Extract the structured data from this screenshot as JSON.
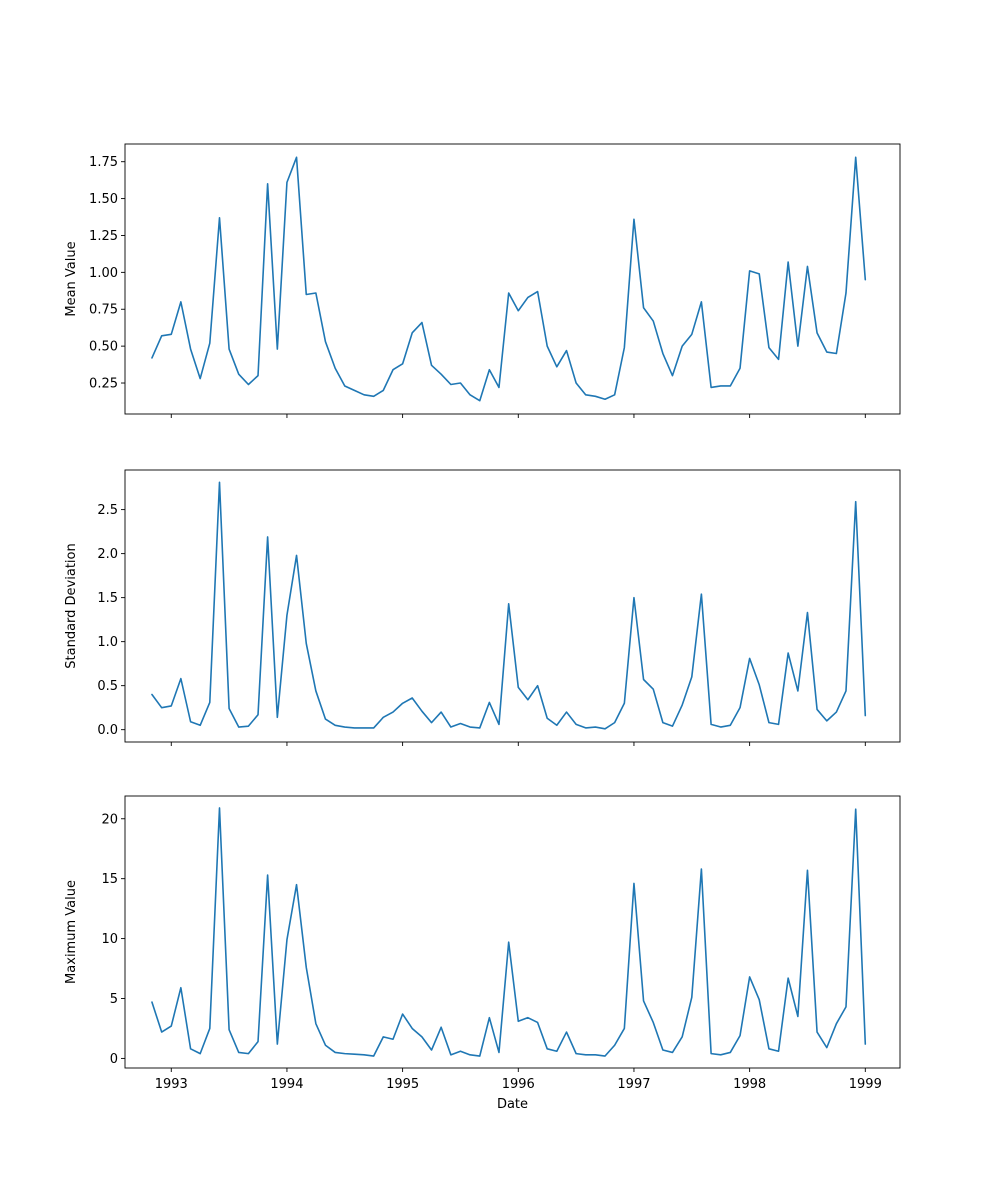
{
  "colors": {
    "series": "#1f77b4",
    "axes": "#000000",
    "background": "#ffffff"
  },
  "chart_data": [
    {
      "type": "line",
      "xlabel": "",
      "ylabel": "Mean Value",
      "xlim": [
        1992.6,
        1999.3
      ],
      "ylim": [
        0.04,
        1.87
      ],
      "yticks": [
        0.25,
        0.5,
        0.75,
        1.0,
        1.25,
        1.5,
        1.75
      ],
      "ytick_labels": [
        "0.25",
        "0.50",
        "0.75",
        "1.00",
        "1.25",
        "1.50",
        "1.75"
      ],
      "xticks": [
        1993,
        1994,
        1995,
        1996,
        1997,
        1998,
        1999
      ],
      "xtick_labels": [],
      "grid": false,
      "x": [
        1992.833,
        1992.917,
        1993.0,
        1993.083,
        1993.167,
        1993.25,
        1993.333,
        1993.417,
        1993.5,
        1993.583,
        1993.667,
        1993.75,
        1993.833,
        1993.917,
        1994.0,
        1994.083,
        1994.167,
        1994.25,
        1994.333,
        1994.417,
        1994.5,
        1994.583,
        1994.667,
        1994.75,
        1994.833,
        1994.917,
        1995.0,
        1995.083,
        1995.167,
        1995.25,
        1995.333,
        1995.417,
        1995.5,
        1995.583,
        1995.667,
        1995.75,
        1995.833,
        1995.917,
        1996.0,
        1996.083,
        1996.167,
        1996.25,
        1996.333,
        1996.417,
        1996.5,
        1996.583,
        1996.667,
        1996.75,
        1996.833,
        1996.917,
        1997.0,
        1997.083,
        1997.167,
        1997.25,
        1997.333,
        1997.417,
        1997.5,
        1997.583,
        1997.667,
        1997.75,
        1997.833,
        1997.917,
        1998.0,
        1998.083,
        1998.167,
        1998.25,
        1998.333,
        1998.417,
        1998.5,
        1998.583,
        1998.667,
        1998.75,
        1998.833,
        1998.917,
        1999.0
      ],
      "series": [
        {
          "values": [
            0.42,
            0.57,
            0.58,
            0.8,
            0.48,
            0.28,
            0.52,
            1.37,
            0.48,
            0.31,
            0.24,
            0.3,
            1.6,
            0.48,
            1.61,
            1.78,
            0.85,
            0.86,
            0.53,
            0.35,
            0.23,
            0.2,
            0.17,
            0.16,
            0.2,
            0.34,
            0.38,
            0.59,
            0.66,
            0.37,
            0.31,
            0.24,
            0.25,
            0.17,
            0.13,
            0.34,
            0.22,
            0.86,
            0.74,
            0.83,
            0.87,
            0.5,
            0.36,
            0.47,
            0.25,
            0.17,
            0.16,
            0.14,
            0.17,
            0.49,
            1.36,
            0.76,
            0.67,
            0.45,
            0.3,
            0.5,
            0.58,
            0.8,
            0.22,
            0.23,
            0.23,
            0.35,
            1.01,
            0.99,
            0.49,
            0.41,
            1.07,
            0.5,
            1.04,
            0.59,
            0.46,
            0.45,
            0.86,
            1.78,
            0.95
          ]
        }
      ]
    },
    {
      "type": "line",
      "xlabel": "",
      "ylabel": "Standard Deviation",
      "xlim": [
        1992.6,
        1999.3
      ],
      "ylim": [
        -0.14,
        2.95
      ],
      "yticks": [
        0.0,
        0.5,
        1.0,
        1.5,
        2.0,
        2.5
      ],
      "ytick_labels": [
        "0.0",
        "0.5",
        "1.0",
        "1.5",
        "2.0",
        "2.5"
      ],
      "xticks": [
        1993,
        1994,
        1995,
        1996,
        1997,
        1998,
        1999
      ],
      "xtick_labels": [],
      "grid": false,
      "x": [
        1992.833,
        1992.917,
        1993.0,
        1993.083,
        1993.167,
        1993.25,
        1993.333,
        1993.417,
        1993.5,
        1993.583,
        1993.667,
        1993.75,
        1993.833,
        1993.917,
        1994.0,
        1994.083,
        1994.167,
        1994.25,
        1994.333,
        1994.417,
        1994.5,
        1994.583,
        1994.667,
        1994.75,
        1994.833,
        1994.917,
        1995.0,
        1995.083,
        1995.167,
        1995.25,
        1995.333,
        1995.417,
        1995.5,
        1995.583,
        1995.667,
        1995.75,
        1995.833,
        1995.917,
        1996.0,
        1996.083,
        1996.167,
        1996.25,
        1996.333,
        1996.417,
        1996.5,
        1996.583,
        1996.667,
        1996.75,
        1996.833,
        1996.917,
        1997.0,
        1997.083,
        1997.167,
        1997.25,
        1997.333,
        1997.417,
        1997.5,
        1997.583,
        1997.667,
        1997.75,
        1997.833,
        1997.917,
        1998.0,
        1998.083,
        1998.167,
        1998.25,
        1998.333,
        1998.417,
        1998.5,
        1998.583,
        1998.667,
        1998.75,
        1998.833,
        1998.917,
        1999.0
      ],
      "series": [
        {
          "values": [
            0.4,
            0.25,
            0.27,
            0.58,
            0.09,
            0.05,
            0.31,
            2.81,
            0.24,
            0.03,
            0.04,
            0.17,
            2.19,
            0.14,
            1.3,
            1.98,
            0.98,
            0.44,
            0.12,
            0.05,
            0.03,
            0.02,
            0.02,
            0.02,
            0.14,
            0.2,
            0.3,
            0.36,
            0.21,
            0.08,
            0.2,
            0.03,
            0.07,
            0.03,
            0.02,
            0.31,
            0.06,
            1.43,
            0.48,
            0.34,
            0.5,
            0.13,
            0.05,
            0.2,
            0.06,
            0.02,
            0.03,
            0.01,
            0.08,
            0.3,
            1.5,
            0.57,
            0.46,
            0.08,
            0.04,
            0.28,
            0.6,
            1.54,
            0.06,
            0.03,
            0.05,
            0.25,
            0.81,
            0.51,
            0.08,
            0.06,
            0.87,
            0.44,
            1.33,
            0.23,
            0.1,
            0.2,
            0.44,
            2.59,
            0.16
          ]
        }
      ]
    },
    {
      "type": "line",
      "xlabel": "Date",
      "ylabel": "Maximum Value",
      "xlim": [
        1992.6,
        1999.3
      ],
      "ylim": [
        -0.8,
        21.9
      ],
      "yticks": [
        0,
        5,
        10,
        15,
        20
      ],
      "ytick_labels": [
        "0",
        "5",
        "10",
        "15",
        "20"
      ],
      "xticks": [
        1993,
        1994,
        1995,
        1996,
        1997,
        1998,
        1999
      ],
      "xtick_labels": [
        "1993",
        "1994",
        "1995",
        "1996",
        "1997",
        "1998",
        "1999"
      ],
      "grid": false,
      "x": [
        1992.833,
        1992.917,
        1993.0,
        1993.083,
        1993.167,
        1993.25,
        1993.333,
        1993.417,
        1993.5,
        1993.583,
        1993.667,
        1993.75,
        1993.833,
        1993.917,
        1994.0,
        1994.083,
        1994.167,
        1994.25,
        1994.333,
        1994.417,
        1994.5,
        1994.583,
        1994.667,
        1994.75,
        1994.833,
        1994.917,
        1995.0,
        1995.083,
        1995.167,
        1995.25,
        1995.333,
        1995.417,
        1995.5,
        1995.583,
        1995.667,
        1995.75,
        1995.833,
        1995.917,
        1996.0,
        1996.083,
        1996.167,
        1996.25,
        1996.333,
        1996.417,
        1996.5,
        1996.583,
        1996.667,
        1996.75,
        1996.833,
        1996.917,
        1997.0,
        1997.083,
        1997.167,
        1997.25,
        1997.333,
        1997.417,
        1997.5,
        1997.583,
        1997.667,
        1997.75,
        1997.833,
        1997.917,
        1998.0,
        1998.083,
        1998.167,
        1998.25,
        1998.333,
        1998.417,
        1998.5,
        1998.583,
        1998.667,
        1998.75,
        1998.833,
        1998.917,
        1999.0
      ],
      "series": [
        {
          "values": [
            4.7,
            2.2,
            2.7,
            5.9,
            0.8,
            0.4,
            2.5,
            20.9,
            2.4,
            0.5,
            0.4,
            1.4,
            15.3,
            1.2,
            9.9,
            14.5,
            7.6,
            2.9,
            1.1,
            0.5,
            0.4,
            0.35,
            0.3,
            0.2,
            1.8,
            1.6,
            3.7,
            2.5,
            1.8,
            0.7,
            2.6,
            0.3,
            0.6,
            0.3,
            0.2,
            3.4,
            0.5,
            9.7,
            3.1,
            3.4,
            3.0,
            0.8,
            0.6,
            2.2,
            0.4,
            0.3,
            0.3,
            0.2,
            1.1,
            2.5,
            14.6,
            4.8,
            3.0,
            0.7,
            0.5,
            1.8,
            5.1,
            15.8,
            0.4,
            0.3,
            0.5,
            1.9,
            6.8,
            4.9,
            0.8,
            0.6,
            6.7,
            3.5,
            15.7,
            2.2,
            0.9,
            2.9,
            4.3,
            20.8,
            1.2
          ]
        }
      ]
    }
  ]
}
